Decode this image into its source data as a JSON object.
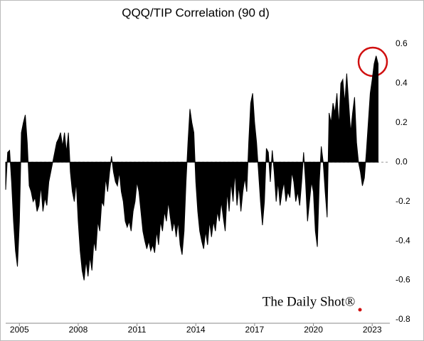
{
  "chart_data": {
    "type": "area",
    "title": "QQQ/TIP Correlation (90 d)",
    "annotation": "The Daily Shot®",
    "color": "#000000",
    "x": [
      2004.3,
      2004.4,
      2004.5,
      2004.6,
      2004.7,
      2004.8,
      2004.9,
      2005.0,
      2005.1,
      2005.2,
      2005.3,
      2005.4,
      2005.5,
      2005.6,
      2005.7,
      2005.8,
      2005.9,
      2006.0,
      2006.1,
      2006.2,
      2006.3,
      2006.4,
      2006.5,
      2006.6,
      2006.7,
      2006.8,
      2006.9,
      2007.0,
      2007.1,
      2007.2,
      2007.3,
      2007.4,
      2007.5,
      2007.6,
      2007.7,
      2007.8,
      2007.9,
      2008.0,
      2008.1,
      2008.2,
      2008.3,
      2008.4,
      2008.5,
      2008.6,
      2008.7,
      2008.8,
      2008.9,
      2009.0,
      2009.1,
      2009.2,
      2009.3,
      2009.4,
      2009.5,
      2009.6,
      2009.7,
      2009.8,
      2009.9,
      2010.0,
      2010.1,
      2010.2,
      2010.3,
      2010.4,
      2010.5,
      2010.6,
      2010.7,
      2010.8,
      2010.9,
      2011.0,
      2011.1,
      2011.2,
      2011.3,
      2011.4,
      2011.5,
      2011.6,
      2011.7,
      2011.8,
      2011.9,
      2012.0,
      2012.1,
      2012.2,
      2012.3,
      2012.4,
      2012.5,
      2012.6,
      2012.7,
      2012.8,
      2012.9,
      2013.0,
      2013.1,
      2013.2,
      2013.3,
      2013.4,
      2013.5,
      2013.6,
      2013.7,
      2013.8,
      2013.9,
      2014.0,
      2014.1,
      2014.2,
      2014.3,
      2014.4,
      2014.5,
      2014.6,
      2014.7,
      2014.8,
      2014.9,
      2015.0,
      2015.1,
      2015.2,
      2015.3,
      2015.4,
      2015.5,
      2015.6,
      2015.7,
      2015.8,
      2015.9,
      2016.0,
      2016.1,
      2016.2,
      2016.3,
      2016.4,
      2016.5,
      2016.6,
      2016.7,
      2016.8,
      2016.9,
      2017.0,
      2017.1,
      2017.2,
      2017.3,
      2017.4,
      2017.5,
      2017.6,
      2017.7,
      2017.8,
      2017.9,
      2018.0,
      2018.1,
      2018.2,
      2018.3,
      2018.4,
      2018.5,
      2018.6,
      2018.7,
      2018.8,
      2018.9,
      2019.0,
      2019.1,
      2019.2,
      2019.3,
      2019.4,
      2019.5,
      2019.6,
      2019.7,
      2019.8,
      2019.9,
      2020.0,
      2020.1,
      2020.2,
      2020.3,
      2020.4,
      2020.5,
      2020.6,
      2020.7,
      2020.8,
      2020.9,
      2021.0,
      2021.1,
      2021.2,
      2021.3,
      2021.4,
      2021.5,
      2021.6,
      2021.7,
      2021.8,
      2021.9,
      2022.0,
      2022.1,
      2022.2,
      2022.3,
      2022.4,
      2022.5,
      2022.6,
      2022.7,
      2022.8,
      2022.9,
      2023.0,
      2023.1,
      2023.2,
      2023.3
    ],
    "values": [
      -0.14,
      0.05,
      0.06,
      -0.1,
      -0.3,
      -0.45,
      -0.53,
      -0.3,
      0.15,
      0.2,
      0.24,
      0.1,
      -0.12,
      -0.15,
      -0.2,
      -0.18,
      -0.25,
      -0.22,
      -0.12,
      -0.25,
      -0.18,
      -0.22,
      -0.1,
      -0.05,
      0.0,
      0.05,
      0.1,
      0.12,
      0.15,
      0.08,
      0.15,
      0.05,
      0.15,
      -0.05,
      -0.15,
      -0.2,
      -0.1,
      -0.3,
      -0.45,
      -0.55,
      -0.6,
      -0.5,
      -0.58,
      -0.48,
      -0.55,
      -0.4,
      -0.45,
      -0.3,
      -0.35,
      -0.2,
      -0.22,
      -0.08,
      -0.15,
      -0.05,
      0.03,
      -0.05,
      -0.1,
      -0.12,
      -0.05,
      -0.15,
      -0.2,
      -0.3,
      -0.33,
      -0.3,
      -0.35,
      -0.25,
      -0.2,
      -0.1,
      -0.15,
      -0.25,
      -0.35,
      -0.4,
      -0.44,
      -0.4,
      -0.45,
      -0.42,
      -0.46,
      -0.35,
      -0.42,
      -0.3,
      -0.35,
      -0.25,
      -0.3,
      -0.2,
      -0.28,
      -0.35,
      -0.3,
      -0.38,
      -0.3,
      -0.42,
      -0.47,
      -0.35,
      -0.1,
      0.1,
      0.27,
      0.2,
      0.15,
      -0.1,
      -0.25,
      -0.35,
      -0.4,
      -0.44,
      -0.35,
      -0.42,
      -0.3,
      -0.38,
      -0.3,
      -0.35,
      -0.25,
      -0.3,
      -0.2,
      -0.28,
      -0.35,
      -0.15,
      -0.25,
      -0.1,
      -0.2,
      -0.05,
      -0.22,
      -0.12,
      -0.25,
      -0.15,
      -0.08,
      -0.15,
      0.1,
      0.3,
      0.35,
      0.2,
      0.1,
      -0.05,
      -0.2,
      -0.32,
      -0.2,
      0.07,
      0.05,
      -0.1,
      0.06,
      -0.05,
      -0.2,
      -0.1,
      -0.22,
      -0.15,
      -0.1,
      -0.2,
      -0.15,
      -0.18,
      -0.05,
      -0.1,
      -0.2,
      -0.15,
      -0.22,
      -0.1,
      0.05,
      -0.1,
      -0.3,
      -0.2,
      -0.1,
      -0.15,
      -0.35,
      -0.43,
      -0.1,
      0.08,
      0.0,
      -0.15,
      -0.28,
      0.25,
      0.2,
      0.3,
      0.25,
      0.35,
      0.18,
      0.4,
      0.42,
      0.3,
      0.45,
      0.3,
      0.15,
      0.25,
      0.33,
      0.1,
      0.0,
      -0.05,
      -0.12,
      -0.08,
      0.05,
      0.2,
      0.35,
      0.42,
      0.5,
      0.54,
      0.5
    ],
    "xlim": [
      2004.3,
      2023.9
    ],
    "xticks": [
      2005,
      2008,
      2011,
      2014,
      2017,
      2020,
      2023
    ],
    "ylim": [
      -0.8,
      0.6
    ],
    "yticks": [
      0.6,
      0.4,
      0.2,
      {
        "value": 0,
        "label": "0.0"
      },
      -0.2,
      -0.4,
      -0.6,
      -0.8
    ]
  }
}
